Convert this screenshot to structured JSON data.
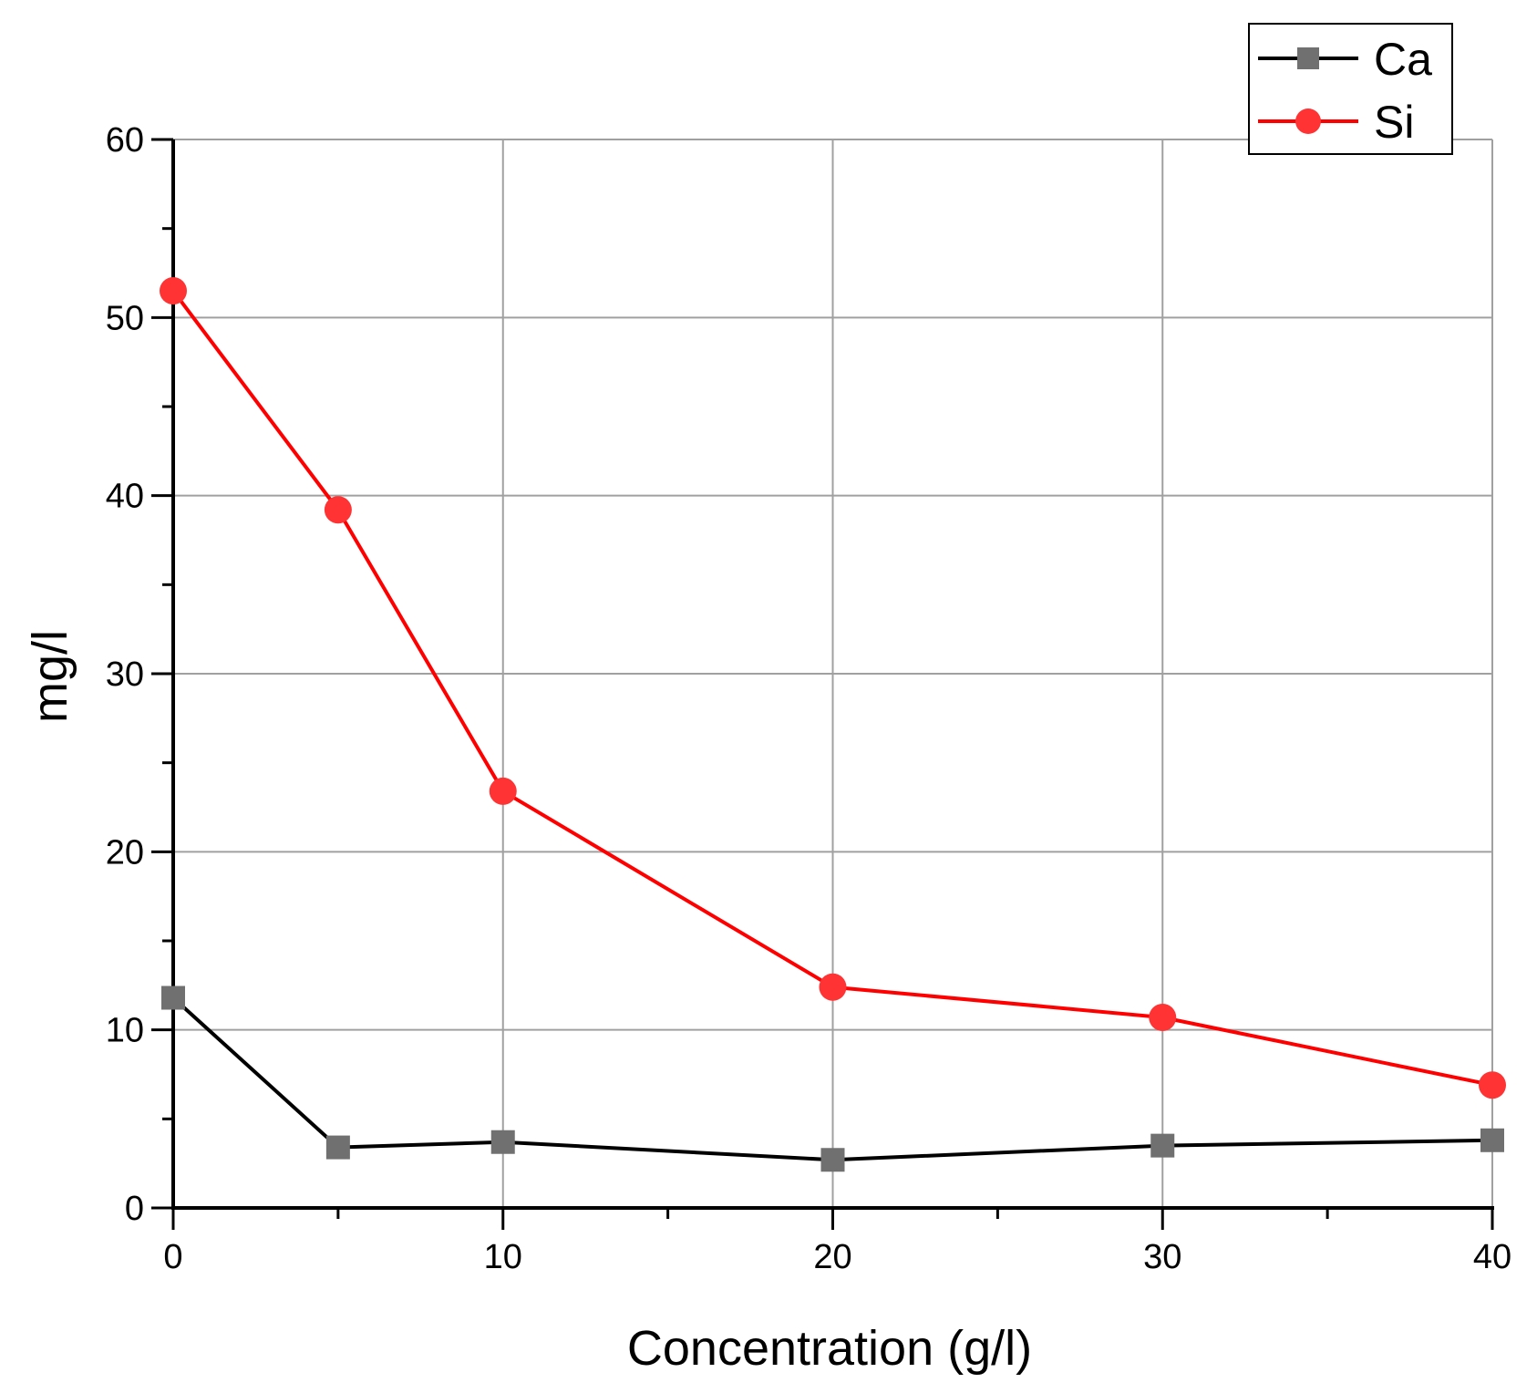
{
  "chart_data": {
    "type": "line",
    "title": "",
    "xlabel": "Concentration (g/l)",
    "ylabel": "mg/l",
    "xlim": [
      0,
      40
    ],
    "ylim": [
      0,
      60
    ],
    "xticks": [
      0,
      10,
      20,
      30,
      40
    ],
    "yticks": [
      0,
      10,
      20,
      30,
      40,
      50,
      60
    ],
    "grid": true,
    "legend_position": "top-right",
    "x": [
      0,
      5,
      10,
      20,
      30,
      40
    ],
    "series": [
      {
        "name": "Ca",
        "marker": "square",
        "line_color": "#000000",
        "marker_color": "#707070",
        "values": [
          11.8,
          3.4,
          3.7,
          2.7,
          3.5,
          3.8
        ]
      },
      {
        "name": "Si",
        "marker": "circle",
        "line_color": "#ff0000",
        "marker_color": "#ff3333",
        "values": [
          51.5,
          39.2,
          23.4,
          12.4,
          10.7,
          6.9
        ]
      }
    ]
  }
}
